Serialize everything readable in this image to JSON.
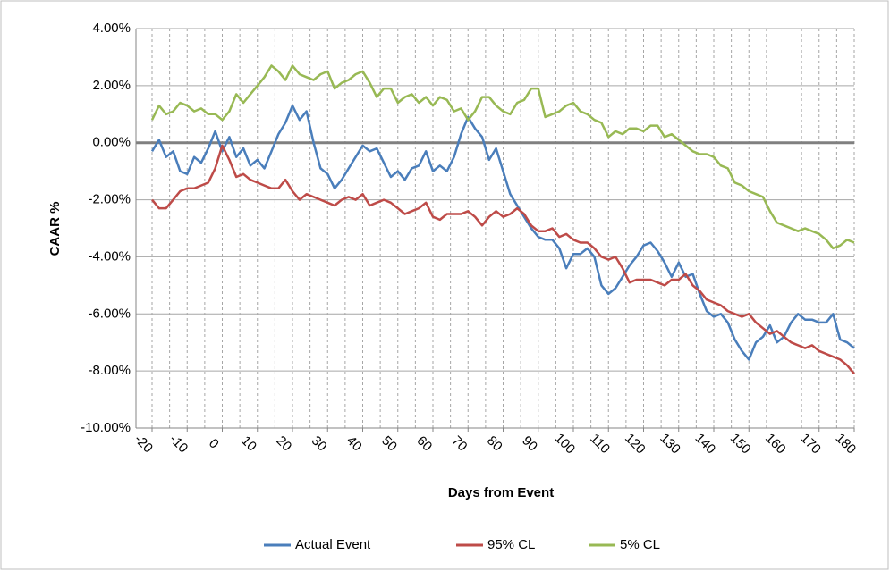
{
  "chart_data": {
    "type": "line",
    "y_label": "CAAR %",
    "x_label": "Days from Event",
    "x": [
      -20,
      -18,
      -16,
      -14,
      -12,
      -10,
      -8,
      -6,
      -4,
      -2,
      0,
      2,
      4,
      6,
      8,
      10,
      12,
      14,
      16,
      18,
      20,
      22,
      24,
      26,
      28,
      30,
      32,
      34,
      36,
      38,
      40,
      42,
      44,
      46,
      48,
      50,
      52,
      54,
      56,
      58,
      60,
      62,
      64,
      66,
      68,
      70,
      72,
      74,
      76,
      78,
      80,
      82,
      84,
      86,
      88,
      90,
      92,
      94,
      96,
      98,
      100,
      102,
      104,
      106,
      108,
      110,
      112,
      114,
      116,
      118,
      120,
      122,
      124,
      126,
      128,
      130,
      132,
      134,
      136,
      138,
      140,
      142,
      144,
      146,
      148,
      150,
      152,
      154,
      156,
      158,
      160,
      162,
      164,
      166,
      168,
      170,
      172,
      174,
      176,
      178,
      180
    ],
    "series": [
      {
        "name": "Actual Event",
        "color": "#4a7ebb",
        "values": [
          -0.3,
          0.1,
          -0.5,
          -0.3,
          -1.0,
          -1.1,
          -0.5,
          -0.7,
          -0.2,
          0.4,
          -0.3,
          0.2,
          -0.5,
          -0.2,
          -0.8,
          -0.6,
          -0.9,
          -0.3,
          0.3,
          0.7,
          1.3,
          0.8,
          1.1,
          0,
          -0.9,
          -1.1,
          -1.6,
          -1.3,
          -0.9,
          -0.5,
          -0.1,
          -0.3,
          -0.2,
          -0.7,
          -1.2,
          -1.0,
          -1.3,
          -0.9,
          -0.8,
          -0.3,
          -1.0,
          -0.8,
          -1.0,
          -0.5,
          0.3,
          0.9,
          0.5,
          0.2,
          -0.6,
          -0.2,
          -1.0,
          -1.8,
          -2.2,
          -2.6,
          -3.0,
          -3.3,
          -3.4,
          -3.4,
          -3.7,
          -4.4,
          -3.9,
          -3.9,
          -3.7,
          -4.0,
          -5.0,
          -5.3,
          -5.1,
          -4.7,
          -4.3,
          -4.0,
          -3.6,
          -3.5,
          -3.8,
          -4.2,
          -4.7,
          -4.2,
          -4.7,
          -4.6,
          -5.3,
          -5.9,
          -6.1,
          -6.0,
          -6.3,
          -6.9,
          -7.3,
          -7.6,
          -7.0,
          -6.8,
          -6.4,
          -7.0,
          -6.8,
          -6.3,
          -6.0,
          -6.2,
          -6.2,
          -6.3,
          -6.3,
          -6.0,
          -6.9,
          -7.0,
          -7.2
        ]
      },
      {
        "name": "95% CL",
        "color": "#be4b48",
        "values": [
          -2.0,
          -2.3,
          -2.3,
          -2.0,
          -1.7,
          -1.6,
          -1.6,
          -1.5,
          -1.4,
          -0.9,
          -0.1,
          -0.6,
          -1.2,
          -1.1,
          -1.3,
          -1.4,
          -1.5,
          -1.6,
          -1.6,
          -1.3,
          -1.7,
          -2.0,
          -1.8,
          -1.9,
          -2.0,
          -2.1,
          -2.2,
          -2.0,
          -1.9,
          -2.0,
          -1.8,
          -2.2,
          -2.1,
          -2.0,
          -2.1,
          -2.3,
          -2.5,
          -2.4,
          -2.3,
          -2.1,
          -2.6,
          -2.7,
          -2.5,
          -2.5,
          -2.5,
          -2.4,
          -2.6,
          -2.9,
          -2.6,
          -2.4,
          -2.6,
          -2.5,
          -2.3,
          -2.5,
          -2.9,
          -3.1,
          -3.1,
          -3.0,
          -3.3,
          -3.2,
          -3.4,
          -3.5,
          -3.5,
          -3.7,
          -4.0,
          -4.1,
          -4.0,
          -4.4,
          -4.9,
          -4.8,
          -4.8,
          -4.8,
          -4.9,
          -5.0,
          -4.8,
          -4.8,
          -4.6,
          -5.0,
          -5.2,
          -5.5,
          -5.6,
          -5.7,
          -5.9,
          -6.0,
          -6.1,
          -6.0,
          -6.3,
          -6.5,
          -6.7,
          -6.6,
          -6.8,
          -7.0,
          -7.1,
          -7.2,
          -7.1,
          -7.3,
          -7.4,
          -7.5,
          -7.6,
          -7.8,
          -8.1
        ]
      },
      {
        "name": "5% CL",
        "color": "#98b954",
        "values": [
          0.8,
          1.3,
          1.0,
          1.1,
          1.4,
          1.3,
          1.1,
          1.2,
          1.0,
          1.0,
          0.8,
          1.1,
          1.7,
          1.4,
          1.7,
          2.0,
          2.3,
          2.7,
          2.5,
          2.2,
          2.7,
          2.4,
          2.3,
          2.2,
          2.4,
          2.5,
          1.9,
          2.1,
          2.2,
          2.4,
          2.5,
          2.1,
          1.6,
          1.9,
          1.9,
          1.4,
          1.6,
          1.7,
          1.4,
          1.6,
          1.3,
          1.6,
          1.5,
          1.1,
          1.2,
          0.8,
          1.1,
          1.6,
          1.6,
          1.3,
          1.1,
          1.0,
          1.4,
          1.5,
          1.9,
          1.9,
          0.9,
          1.0,
          1.1,
          1.3,
          1.4,
          1.1,
          1.0,
          0.8,
          0.7,
          0.2,
          0.4,
          0.3,
          0.5,
          0.5,
          0.4,
          0.6,
          0.6,
          0.2,
          0.3,
          0.1,
          -0.1,
          -0.3,
          -0.4,
          -0.4,
          -0.5,
          -0.8,
          -0.9,
          -1.4,
          -1.5,
          -1.7,
          -1.8,
          -1.9,
          -2.4,
          -2.8,
          -2.9,
          -3.0,
          -3.1,
          -3.0,
          -3.1,
          -3.2,
          -3.4,
          -3.7,
          -3.6,
          -3.4,
          -3.5
        ]
      }
    ],
    "xlim": [
      -20,
      180
    ],
    "xticks": [
      -20,
      -10,
      0,
      10,
      20,
      30,
      40,
      50,
      60,
      70,
      80,
      90,
      100,
      110,
      120,
      130,
      140,
      150,
      160,
      170,
      180
    ],
    "x_minor_gridlines": [
      -15,
      -5,
      5,
      15,
      25,
      35,
      45,
      55,
      65,
      75,
      85,
      95,
      105,
      115,
      125,
      135,
      145,
      155,
      165,
      175
    ],
    "ylim": [
      -10,
      4
    ],
    "yticks": [
      {
        "value": -10,
        "label": "-10.00%"
      },
      {
        "value": -8,
        "label": "-8.00%"
      },
      {
        "value": -6,
        "label": "-6.00%"
      },
      {
        "value": -4,
        "label": "-4.00%"
      },
      {
        "value": -2,
        "label": "-2.00%"
      },
      {
        "value": 0,
        "label": "0.00%"
      },
      {
        "value": 2,
        "label": "2.00%"
      },
      {
        "value": 4,
        "label": "4.00%"
      }
    ],
    "grid": true,
    "legend": "bottom"
  }
}
